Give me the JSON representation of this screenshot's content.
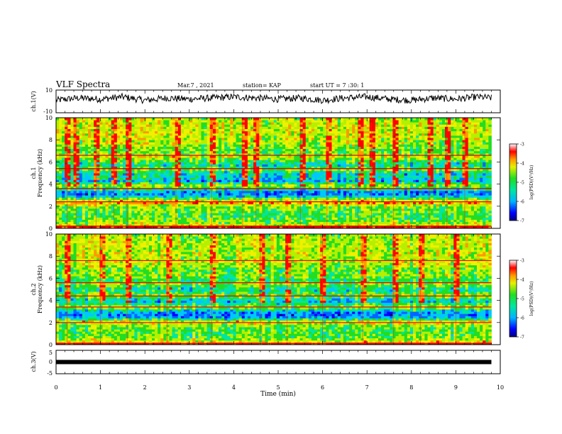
{
  "header": {
    "title": "VLF Spectra",
    "date": "Mar.7 , 2021",
    "station": "station= KAP",
    "start": "start UT = 7 :30: 1"
  },
  "colors": {
    "colormap": [
      "#000080",
      "#0000ff",
      "#0066ff",
      "#00c8ff",
      "#00e6a0",
      "#22dd22",
      "#b4f000",
      "#f0f000",
      "#ff9900",
      "#ff0000",
      "#cc0000",
      "#ffffff"
    ]
  },
  "chart_data": [
    {
      "type": "line",
      "ylabel": "ch.1(V)",
      "ylim": [
        -10,
        10
      ],
      "ytick_labels": [
        "10",
        "-10"
      ],
      "xlim": [
        0,
        10
      ],
      "note": "noisy voltage trace roughly between -2 and 5 V over 0 to 9.8 min",
      "x": [
        0,
        0.5,
        1,
        1.5,
        2,
        2.5,
        3,
        3.5,
        4,
        4.5,
        5,
        5.5,
        6,
        6.5,
        7,
        7.5,
        8,
        8.5,
        9,
        9.5,
        9.8
      ],
      "y": [
        1,
        3,
        2,
        4,
        1,
        3,
        2,
        3,
        4,
        3,
        2,
        3,
        1,
        3,
        4,
        2,
        1,
        3,
        2,
        4,
        3
      ]
    },
    {
      "type": "heatmap",
      "ylabel": "ch.1\nFrequency (kHz)",
      "xlim": [
        0,
        10
      ],
      "ylim": [
        0,
        10
      ],
      "ytick_labels": [
        "0",
        "2",
        "4",
        "6",
        "8",
        "10"
      ],
      "data_xmax": 9.8,
      "colorbar": {
        "label": "log(PSD)(V²/Hz)",
        "ticks": [
          "-3",
          "-4",
          "-5",
          "-6",
          "-7"
        ],
        "range": [
          -7,
          -3
        ]
      },
      "freq_kHz": [
        0.1,
        0.3,
        0.5,
        0.7,
        0.9,
        1.1,
        1.3,
        1.5,
        1.7,
        1.9,
        2.1,
        2.3,
        2.5,
        2.7,
        2.9,
        3.1,
        3.3,
        3.5,
        3.7,
        3.9,
        4.1,
        4.3,
        4.5,
        4.7,
        4.9,
        5.1,
        5.3,
        5.5,
        5.7,
        5.9,
        6.1,
        6.3,
        6.5,
        6.7,
        6.9,
        7.1,
        7.3,
        7.5,
        7.7,
        7.9,
        8.1,
        8.3,
        8.5,
        8.7,
        8.9,
        9.1,
        9.3,
        9.5,
        9.7,
        9.9
      ],
      "mean_log_psd": [
        -3.4,
        -4.3,
        -4.6,
        -4.8,
        -4.9,
        -5.0,
        -5.0,
        -4.9,
        -4.8,
        -4.8,
        -4.5,
        -4.0,
        -4.3,
        -4.9,
        -5.6,
        -6.0,
        -5.9,
        -5.4,
        -4.9,
        -4.7,
        -5.2,
        -5.7,
        -5.6,
        -5.4,
        -5.6,
        -5.3,
        -4.8,
        -5.0,
        -5.4,
        -5.3,
        -5.0,
        -4.7,
        -4.4,
        -4.8,
        -4.9,
        -4.9,
        -4.8,
        -4.7,
        -4.6,
        -4.6,
        -4.5,
        -4.5,
        -4.5,
        -4.4,
        -4.5,
        -4.5,
        -4.4,
        -4.5,
        -4.5,
        -4.6
      ],
      "line_freqs_kHz": [
        0.2,
        2.4,
        3.6,
        5.4,
        6.6
      ],
      "line_log_psd": -3.3,
      "impulse_times_min": [
        0.25,
        0.45,
        0.9,
        1.3,
        1.6,
        2.7,
        3.5,
        4.2,
        4.5,
        5.5,
        6.1,
        6.8,
        7.1,
        7.6,
        8.4,
        8.8,
        9.2
      ],
      "impulse_log_psd": -3.6
    },
    {
      "type": "heatmap",
      "ylabel": "ch.2\nFrequency (kHz)",
      "xlim": [
        0,
        10
      ],
      "ylim": [
        0,
        10
      ],
      "ytick_labels": [
        "0",
        "2",
        "4",
        "6",
        "8",
        "10"
      ],
      "data_xmax": 9.8,
      "colorbar": {
        "label": "log(PSD)(V²/Hz)",
        "ticks": [
          "-3",
          "-4",
          "-5",
          "-6",
          "-7"
        ],
        "range": [
          -7,
          -3
        ]
      },
      "freq_kHz": [
        0.1,
        0.3,
        0.5,
        0.7,
        0.9,
        1.1,
        1.3,
        1.5,
        1.7,
        1.9,
        2.1,
        2.3,
        2.5,
        2.7,
        2.9,
        3.1,
        3.3,
        3.5,
        3.7,
        3.9,
        4.1,
        4.3,
        4.5,
        4.7,
        4.9,
        5.1,
        5.3,
        5.5,
        5.7,
        5.9,
        6.1,
        6.3,
        6.5,
        6.7,
        6.9,
        7.1,
        7.3,
        7.5,
        7.7,
        7.9,
        8.1,
        8.3,
        8.5,
        8.7,
        8.9,
        9.1,
        9.3,
        9.5,
        9.7,
        9.9
      ],
      "mean_log_psd": [
        -3.3,
        -4.4,
        -4.7,
        -4.9,
        -4.9,
        -5.0,
        -4.9,
        -4.9,
        -4.8,
        -4.6,
        -4.3,
        -5.2,
        -5.8,
        -6.0,
        -5.9,
        -5.5,
        -4.9,
        -4.8,
        -5.2,
        -5.6,
        -5.4,
        -5.0,
        -4.8,
        -5.0,
        -5.3,
        -5.3,
        -5.0,
        -4.8,
        -5.1,
        -5.1,
        -4.9,
        -4.7,
        -4.8,
        -4.9,
        -4.8,
        -4.7,
        -4.6,
        -4.5,
        -4.6,
        -4.6,
        -4.5,
        -4.5,
        -4.6,
        -4.6,
        -4.5,
        -4.5,
        -4.5,
        -4.6,
        -4.6,
        -4.6
      ],
      "line_freqs_kHz": [
        0.1,
        2.0,
        3.4,
        4.4,
        5.6,
        7.6
      ],
      "line_log_psd": -3.4,
      "impulse_times_min": [
        0.25,
        1.0,
        1.6,
        2.5,
        3.5,
        4.6,
        5.2,
        6.0,
        6.9,
        7.6,
        8.2,
        9.0
      ],
      "impulse_log_psd": -3.7
    },
    {
      "type": "line",
      "ylabel": "ch.3(V)",
      "ylim": [
        -5,
        5
      ],
      "ytick_labels": [
        "5",
        "0",
        "-5"
      ],
      "xlim": [
        0,
        10
      ],
      "xlabel": "Time (min)",
      "xtick_labels": [
        "0",
        "1",
        "2",
        "3",
        "4",
        "5",
        "6",
        "7",
        "8",
        "9",
        "10"
      ],
      "x": [
        0,
        9.8
      ],
      "y": [
        0,
        0
      ],
      "note": "thick constant signal around 0 V"
    }
  ]
}
